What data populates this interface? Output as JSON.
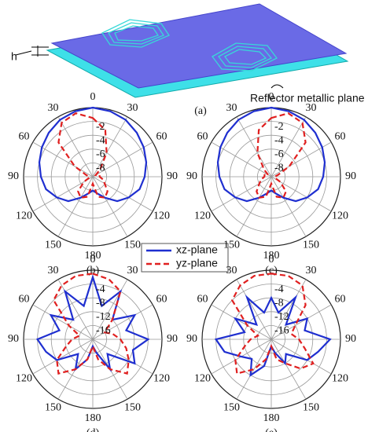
{
  "diagram": {
    "height_label": "h",
    "plane_label": "Reflector metallic plane",
    "panel_label": "(a)"
  },
  "chart_data": [
    {
      "type": "polar",
      "label": "(b)",
      "rlim": [
        -10,
        0
      ],
      "rticks": [
        -2,
        -4,
        -6,
        -8
      ],
      "theta": [
        0,
        15,
        30,
        45,
        60,
        75,
        90,
        105,
        120,
        135,
        150,
        165,
        180,
        195,
        210,
        225,
        240,
        255,
        270,
        285,
        300,
        315,
        330,
        345
      ],
      "theta_ticks": [
        0,
        30,
        60,
        90,
        120,
        150,
        180,
        {
          "value": 210,
          "label": "150"
        },
        {
          "value": 240,
          "label": "120"
        },
        {
          "value": 270,
          "label": "90"
        },
        {
          "value": 300,
          "label": "60"
        },
        {
          "value": 330,
          "label": "30"
        }
      ],
      "series": [
        {
          "name": "xz-plane",
          "color": "#1f2fd0",
          "dash": false,
          "values": [
            0,
            -0.2,
            -0.5,
            -1,
            -1.5,
            -2,
            -2.5,
            -3,
            -4,
            -5,
            -6.5,
            -7.5,
            -8,
            -7.5,
            -6.5,
            -5,
            -4,
            -3,
            -2.5,
            -2,
            -1.5,
            -1,
            -0.5,
            -0.2
          ]
        },
        {
          "name": "yz-plane",
          "color": "#e02020",
          "dash": true,
          "values": [
            -1.5,
            -3,
            -6,
            -8.5,
            -9.5,
            -9,
            -9,
            -8.5,
            -8,
            -7,
            -6.5,
            -7,
            -9,
            -7,
            -6.5,
            -7,
            -8.5,
            -9.5,
            -9.5,
            -9,
            -7,
            -3,
            -1,
            -0.5
          ]
        }
      ]
    },
    {
      "type": "polar",
      "label": "(c)",
      "rlim": [
        -10,
        0
      ],
      "rticks": [
        -2,
        -4,
        -6,
        -8
      ],
      "theta": [
        0,
        15,
        30,
        45,
        60,
        75,
        90,
        105,
        120,
        135,
        150,
        165,
        180,
        195,
        210,
        225,
        240,
        255,
        270,
        285,
        300,
        315,
        330,
        345
      ],
      "theta_ticks": [
        0,
        30,
        60,
        90,
        120,
        150,
        180,
        {
          "value": 210,
          "label": "150"
        },
        {
          "value": 240,
          "label": "120"
        },
        {
          "value": 270,
          "label": "90"
        },
        {
          "value": 300,
          "label": "60"
        },
        {
          "value": 330,
          "label": "30"
        }
      ],
      "series": [
        {
          "name": "xz-plane",
          "color": "#1f2fd0",
          "dash": false,
          "values": [
            0,
            -0.2,
            -0.5,
            -1,
            -1.5,
            -2,
            -2.5,
            -3,
            -4,
            -5,
            -6.5,
            -7.5,
            -8,
            -7.5,
            -6.5,
            -5,
            -4,
            -3,
            -2.5,
            -2,
            -1.5,
            -1,
            -0.5,
            -0.2
          ]
        },
        {
          "name": "yz-plane",
          "color": "#e02020",
          "dash": true,
          "values": [
            -1.5,
            -0.5,
            -1,
            -3,
            -7,
            -9,
            -9.5,
            -9.5,
            -8.5,
            -7,
            -6.5,
            -7,
            -9,
            -7,
            -6.5,
            -7,
            -8,
            -8.5,
            -9,
            -9,
            -9.5,
            -8.5,
            -6,
            -3
          ]
        }
      ]
    },
    {
      "type": "polar",
      "label": "(d)",
      "rlim": [
        -20,
        0
      ],
      "rticks": [
        -4,
        -8,
        -12,
        -16
      ],
      "theta": [
        0,
        15,
        30,
        45,
        60,
        75,
        90,
        105,
        120,
        135,
        150,
        165,
        180,
        195,
        210,
        225,
        240,
        255,
        270,
        285,
        300,
        315,
        330,
        345
      ],
      "theta_ticks": [
        0,
        30,
        60,
        90,
        120,
        150,
        180,
        {
          "value": 210,
          "label": "150"
        },
        {
          "value": 240,
          "label": "120"
        },
        {
          "value": 270,
          "label": "90"
        },
        {
          "value": 300,
          "label": "60"
        },
        {
          "value": 330,
          "label": "30"
        }
      ],
      "series": [
        {
          "name": "xz-plane",
          "color": "#1f2fd0",
          "dash": false,
          "values": [
            -2,
            -10,
            -4,
            -12,
            -6,
            -10,
            -4,
            -8,
            -6,
            -14,
            -10,
            -16,
            -18,
            -14,
            -10,
            -14,
            -8,
            -6,
            -4,
            -10,
            -6,
            -12,
            -4,
            -10
          ]
        },
        {
          "name": "yz-plane",
          "color": "#e02020",
          "dash": true,
          "values": [
            -1,
            -2,
            -4,
            -12,
            -16,
            -14,
            -12,
            -10,
            -8,
            -6,
            -10,
            -14,
            -18,
            -14,
            -10,
            -6,
            -8,
            -12,
            -14,
            -16,
            -12,
            -4,
            -2,
            -1
          ]
        }
      ]
    },
    {
      "type": "polar",
      "label": "(e)",
      "rlim": [
        -20,
        0
      ],
      "rticks": [
        -4,
        -8,
        -12,
        -16
      ],
      "theta": [
        0,
        15,
        30,
        45,
        60,
        75,
        90,
        105,
        120,
        135,
        150,
        165,
        180,
        195,
        210,
        225,
        240,
        255,
        270,
        285,
        300,
        315,
        330,
        345
      ],
      "theta_ticks": [
        0,
        30,
        60,
        90,
        120,
        150,
        180,
        {
          "value": 210,
          "label": "150"
        },
        {
          "value": 240,
          "label": "120"
        },
        {
          "value": 270,
          "label": "90"
        },
        {
          "value": 300,
          "label": "60"
        },
        {
          "value": 330,
          "label": "30"
        }
      ],
      "series": [
        {
          "name": "xz-plane",
          "color": "#1f2fd0",
          "dash": false,
          "values": [
            -8,
            -12,
            -6,
            -14,
            -8,
            -10,
            -3,
            -6,
            -8,
            -14,
            -12,
            -16,
            -18,
            -12,
            -8,
            -12,
            -10,
            -6,
            -4,
            -12,
            -8,
            -14,
            -6,
            -12
          ]
        },
        {
          "name": "yz-plane",
          "color": "#e02020",
          "dash": true,
          "values": [
            -1,
            -1,
            -2,
            -6,
            -12,
            -14,
            -12,
            -10,
            -6,
            -8,
            -12,
            -14,
            -18,
            -14,
            -10,
            -6,
            -8,
            -12,
            -14,
            -16,
            -12,
            -4,
            -2,
            -1
          ]
        }
      ]
    }
  ]
}
